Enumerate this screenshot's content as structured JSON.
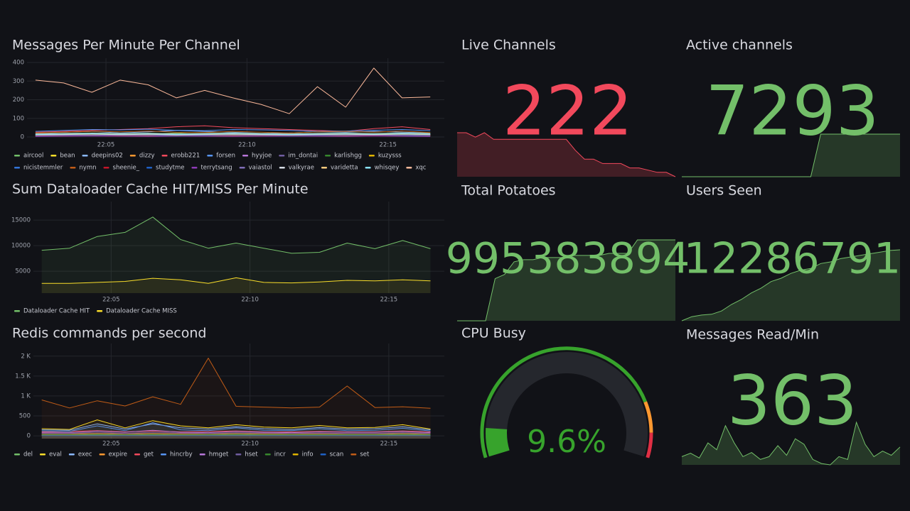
{
  "panels": [
    {
      "type": "timeseries",
      "title": "Messages Per Minute Per Channel",
      "x": [
        2.5,
        3.5,
        4.5,
        5.5,
        6.5,
        7.5,
        8.5,
        9.5,
        10.5,
        11.5,
        12.5,
        13.5,
        14.5,
        15.5,
        16.5
      ],
      "xlim": [
        2.2,
        17
      ],
      "xticks": [
        {
          "value": 5,
          "label": "22:05"
        },
        {
          "value": 10,
          "label": "22:10"
        },
        {
          "value": 15,
          "label": "22:15"
        }
      ],
      "ylim": [
        0,
        400
      ],
      "yticks": [
        0,
        100,
        200,
        300,
        400
      ],
      "fill_opacity": 0,
      "series": [
        {
          "name": "aircool",
          "color": "#73bf69",
          "values": [
            15,
            18,
            20,
            12,
            16,
            22,
            14,
            18,
            15,
            12,
            16,
            20,
            14,
            18,
            15
          ]
        },
        {
          "name": "bean",
          "color": "#fade2a",
          "values": [
            10,
            12,
            8,
            14,
            10,
            9,
            12,
            10,
            8,
            11,
            9,
            10,
            12,
            14,
            10
          ]
        },
        {
          "name": "deepins02",
          "color": "#8ab8ff",
          "values": [
            20,
            25,
            30,
            22,
            28,
            35,
            30,
            25,
            20,
            22,
            28,
            25,
            30,
            26,
            22
          ]
        },
        {
          "name": "dizzy",
          "color": "#ff9830",
          "values": [
            8,
            10,
            12,
            9,
            11,
            10,
            8,
            9,
            12,
            10,
            9,
            11,
            10,
            8,
            9
          ]
        },
        {
          "name": "erobb221",
          "color": "#f2495c",
          "values": [
            25,
            30,
            35,
            40,
            45,
            55,
            60,
            50,
            45,
            40,
            35,
            30,
            45,
            55,
            40
          ]
        },
        {
          "name": "forsen",
          "color": "#5794f2",
          "values": [
            30,
            35,
            40,
            38,
            42,
            36,
            34,
            40,
            38,
            35,
            30,
            32,
            36,
            40,
            34
          ]
        },
        {
          "name": "hyyjoe",
          "color": "#b877d9",
          "values": [
            12,
            14,
            16,
            13,
            15,
            12,
            14,
            16,
            13,
            12,
            14,
            15,
            13,
            16,
            14
          ]
        },
        {
          "name": "im_dontai",
          "color": "#705da0",
          "values": [
            5,
            6,
            8,
            7,
            6,
            5,
            7,
            8,
            6,
            5,
            6,
            7,
            8,
            6,
            5
          ]
        },
        {
          "name": "karlishgg",
          "color": "#37872d",
          "values": [
            18,
            20,
            22,
            19,
            21,
            18,
            20,
            22,
            19,
            18,
            20,
            21,
            19,
            22,
            20
          ]
        },
        {
          "name": "kuzysss",
          "color": "#e0b400",
          "values": [
            6,
            8,
            7,
            9,
            8,
            6,
            7,
            9,
            8,
            6,
            7,
            8,
            9,
            7,
            6
          ]
        },
        {
          "name": "nicistemmler",
          "color": "#3274d9",
          "values": [
            14,
            16,
            18,
            15,
            17,
            14,
            16,
            18,
            15,
            14,
            16,
            17,
            15,
            18,
            16
          ]
        },
        {
          "name": "nymn",
          "color": "#c15c17",
          "values": [
            22,
            26,
            30,
            28,
            32,
            25,
            24,
            30,
            26,
            22,
            28,
            30,
            26,
            32,
            24
          ]
        },
        {
          "name": "sheenie_",
          "color": "#c4162a",
          "values": [
            4,
            5,
            6,
            5,
            4,
            6,
            5,
            4,
            5,
            6,
            5,
            4,
            6,
            5,
            4
          ]
        },
        {
          "name": "studytme",
          "color": "#1f60c4",
          "values": [
            9,
            11,
            13,
            10,
            12,
            9,
            11,
            13,
            10,
            9,
            11,
            12,
            10,
            13,
            11
          ]
        },
        {
          "name": "terrytsang",
          "color": "#8f3bb8",
          "values": [
            3,
            4,
            5,
            4,
            3,
            5,
            4,
            3,
            4,
            5,
            4,
            3,
            5,
            4,
            3
          ]
        },
        {
          "name": "vaiastol",
          "color": "#806eb7",
          "values": [
            7,
            9,
            8,
            10,
            9,
            7,
            8,
            10,
            9,
            7,
            8,
            9,
            10,
            8,
            7
          ]
        },
        {
          "name": "valkyrae",
          "color": "#d6dce4",
          "values": [
            16,
            18,
            20,
            17,
            19,
            16,
            18,
            20,
            17,
            16,
            18,
            19,
            17,
            20,
            18
          ]
        },
        {
          "name": "varidetta",
          "color": "#ffcb7d",
          "values": [
            11,
            13,
            15,
            12,
            14,
            11,
            13,
            15,
            12,
            11,
            13,
            14,
            12,
            15,
            13
          ]
        },
        {
          "name": "whisqey",
          "color": "#8ae3ff",
          "values": [
            13,
            15,
            17,
            14,
            16,
            13,
            15,
            17,
            14,
            13,
            15,
            16,
            14,
            17,
            15
          ]
        },
        {
          "name": "xqc",
          "color": "#fcb99a",
          "values": [
            305,
            290,
            240,
            305,
            280,
            210,
            250,
            210,
            175,
            125,
            270,
            160,
            370,
            210,
            215
          ]
        }
      ]
    },
    {
      "type": "timeseries",
      "title": "Sum Dataloader Cache HIT/MISS Per Minute",
      "x": [
        2.5,
        3.5,
        4.5,
        5.5,
        6.5,
        7.5,
        8.5,
        9.5,
        10.5,
        11.5,
        12.5,
        13.5,
        14.5,
        15.5,
        16.5
      ],
      "xlim": [
        2.2,
        17
      ],
      "xticks": [
        {
          "value": 5,
          "label": "22:05"
        },
        {
          "value": 10,
          "label": "22:10"
        },
        {
          "value": 15,
          "label": "22:15"
        }
      ],
      "ylim": [
        700,
        17800
      ],
      "yticks": [
        5000,
        10000,
        15000
      ],
      "fill_opacity": 0.08,
      "series": [
        {
          "name": "Dataloader Cache HIT",
          "color": "#73bf69",
          "values": [
            9100,
            9500,
            11800,
            12600,
            15600,
            11200,
            9500,
            10500,
            9500,
            8500,
            8700,
            10500,
            9400,
            11000,
            9400
          ]
        },
        {
          "name": "Dataloader Cache MISS",
          "color": "#fade2a",
          "values": [
            2600,
            2600,
            2800,
            3000,
            3600,
            3300,
            2600,
            3700,
            2800,
            2700,
            2900,
            3200,
            3100,
            3300,
            3100
          ]
        }
      ]
    },
    {
      "type": "timeseries",
      "title": "Redis commands per second",
      "x": [
        2.5,
        3.5,
        4.5,
        5.5,
        6.5,
        7.5,
        8.5,
        9.5,
        10.5,
        11.5,
        12.5,
        13.5,
        14.5,
        15.5,
        16.5
      ],
      "xlim": [
        2.2,
        17
      ],
      "xticks": [
        {
          "value": 5,
          "label": "22:05"
        },
        {
          "value": 10,
          "label": "22:10"
        },
        {
          "value": 15,
          "label": "22:15"
        }
      ],
      "ylim": [
        -70,
        2210
      ],
      "yticks": [
        0,
        500,
        {
          "value": 1000,
          "label": "1 K"
        },
        {
          "value": 1500,
          "label": "1.5 K"
        },
        {
          "value": 2000,
          "label": "2 K"
        }
      ],
      "fill_opacity": 0.06,
      "series": [
        {
          "name": "del",
          "color": "#73bf69",
          "values": [
            20,
            20,
            25,
            20,
            20,
            20,
            25,
            20,
            20,
            20,
            20,
            20,
            20,
            20,
            20
          ]
        },
        {
          "name": "eval",
          "color": "#fade2a",
          "values": [
            180,
            160,
            400,
            200,
            380,
            250,
            200,
            280,
            220,
            200,
            260,
            200,
            210,
            280,
            170
          ]
        },
        {
          "name": "exec",
          "color": "#8ab8ff",
          "values": [
            150,
            140,
            300,
            170,
            300,
            200,
            170,
            230,
            180,
            160,
            210,
            170,
            180,
            230,
            150
          ]
        },
        {
          "name": "expire",
          "color": "#ff9830",
          "values": [
            50,
            50,
            60,
            50,
            60,
            50,
            50,
            60,
            50,
            50,
            50,
            50,
            50,
            60,
            50
          ]
        },
        {
          "name": "get",
          "color": "#f2495c",
          "values": [
            100,
            110,
            130,
            100,
            120,
            100,
            110,
            120,
            100,
            100,
            110,
            100,
            100,
            120,
            100
          ]
        },
        {
          "name": "hincrby",
          "color": "#5794f2",
          "values": [
            120,
            110,
            250,
            130,
            330,
            150,
            130,
            200,
            140,
            130,
            180,
            130,
            140,
            190,
            120
          ]
        },
        {
          "name": "hmget",
          "color": "#b877d9",
          "values": [
            80,
            80,
            120,
            90,
            140,
            90,
            80,
            110,
            90,
            80,
            100,
            90,
            90,
            110,
            80
          ]
        },
        {
          "name": "hset",
          "color": "#705da0",
          "values": [
            60,
            60,
            90,
            60,
            90,
            70,
            60,
            80,
            70,
            60,
            70,
            60,
            60,
            80,
            60
          ]
        },
        {
          "name": "incr",
          "color": "#37872d",
          "values": [
            30,
            30,
            40,
            30,
            40,
            30,
            30,
            40,
            30,
            30,
            30,
            30,
            30,
            40,
            30
          ]
        },
        {
          "name": "info",
          "color": "#e0b400",
          "values": [
            10,
            10,
            10,
            10,
            10,
            10,
            10,
            10,
            10,
            10,
            10,
            10,
            10,
            10,
            10
          ]
        },
        {
          "name": "scan",
          "color": "#1f60c4",
          "values": [
            5,
            5,
            5,
            5,
            5,
            5,
            5,
            5,
            5,
            5,
            5,
            5,
            5,
            5,
            5
          ]
        },
        {
          "name": "set",
          "color": "#c15c17",
          "values": [
            900,
            700,
            880,
            750,
            980,
            790,
            1950,
            740,
            720,
            700,
            720,
            1250,
            710,
            730,
            690
          ]
        }
      ]
    },
    {
      "type": "stat",
      "title": "Live Channels",
      "value": 222,
      "color": "#f2495c",
      "sparkline": [
        262,
        262,
        258,
        262,
        256,
        256,
        256,
        256,
        256,
        256,
        256,
        256,
        256,
        246,
        238,
        238,
        234,
        234,
        234,
        230,
        230,
        228,
        226,
        226,
        222
      ]
    },
    {
      "type": "stat",
      "title": "Active channels",
      "value": 7293,
      "color": "#73bf69",
      "sparkline": [
        7000,
        7000,
        7000,
        7000,
        7000,
        7000,
        7000,
        7000,
        7000,
        7000,
        7000,
        7000,
        7000,
        7000,
        7293,
        7293,
        7293,
        7293,
        7293,
        7293,
        7293,
        7293,
        7293
      ]
    },
    {
      "type": "stat",
      "title": "Total Potatoes",
      "value": 995383894,
      "color": "#73bf69",
      "sparkline": [
        995000000,
        995000000,
        995000000,
        995000000,
        995200000,
        995220000,
        995280000,
        995290000,
        995290000,
        995300000,
        995300000,
        995300000,
        995310000,
        995310000,
        995310000,
        995310000,
        995320000,
        995320000,
        995320000,
        995383894,
        995383894,
        995383894,
        995383894,
        995383894
      ]
    },
    {
      "type": "stat",
      "title": "Users Seen",
      "value": 12286791,
      "color": "#73bf69",
      "sparkline": [
        12200000,
        12205000,
        12207000,
        12208000,
        12212000,
        12220000,
        12226000,
        12234000,
        12240000,
        12248000,
        12252000,
        12258000,
        12262000,
        12264000,
        12270000,
        12272000,
        12276000,
        12278000,
        12280000,
        12282000,
        12284000,
        12286000,
        12286791
      ]
    },
    {
      "type": "stat",
      "title": "Messages Read/Min",
      "value": 363,
      "color": "#73bf69",
      "sparkline": [
        300,
        305,
        298,
        320,
        310,
        345,
        320,
        300,
        306,
        296,
        300,
        316,
        302,
        326,
        318,
        296,
        290,
        288,
        300,
        296,
        350,
        318,
        300,
        308,
        302,
        314
      ]
    },
    {
      "type": "gauge",
      "title": "CPU Busy",
      "value": 9.6,
      "value_label": "9.6%",
      "min": 0,
      "max": 100,
      "color": "#37a32c",
      "thresholds": [
        {
          "value": 0,
          "color": "#37a32c"
        },
        {
          "value": 82,
          "color": "#ff9830"
        },
        {
          "value": 92,
          "color": "#e02f44"
        }
      ]
    }
  ]
}
